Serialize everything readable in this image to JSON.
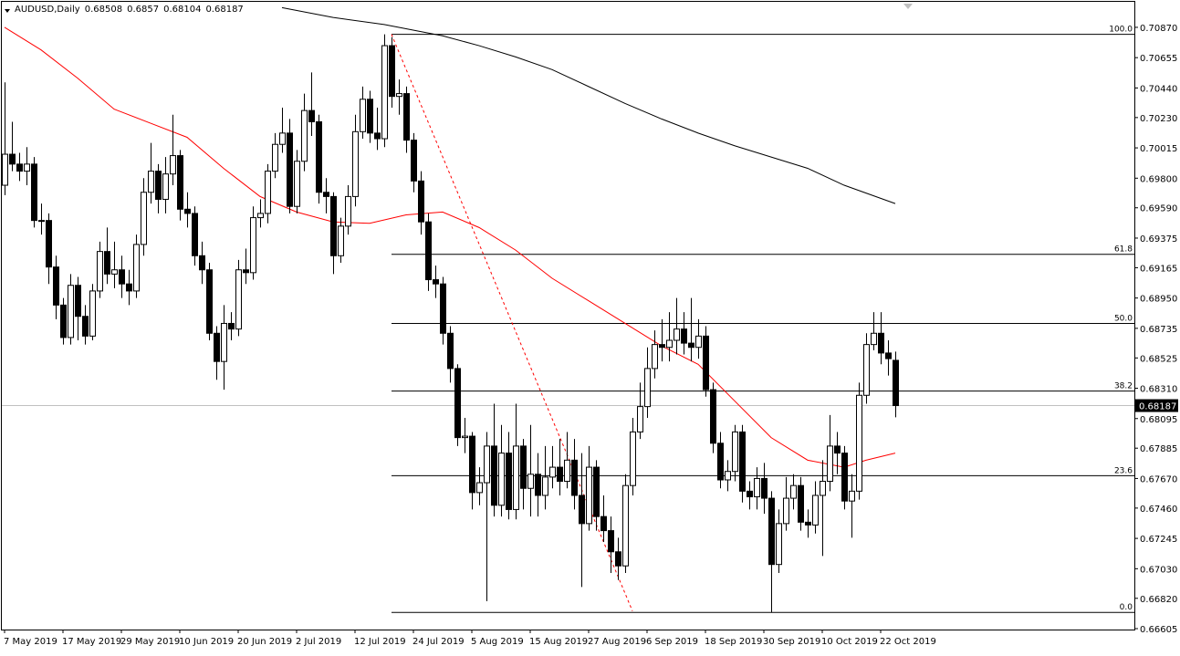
{
  "chart_data": {
    "type": "candlestick",
    "title": "AUDUSD,Daily",
    "categories": [
      "7 May 2019",
      null,
      null,
      null,
      null,
      null,
      null,
      null,
      "17 May 2019",
      null,
      null,
      null,
      null,
      null,
      null,
      null,
      "29 May 2019",
      null,
      null,
      null,
      null,
      null,
      null,
      null,
      "10 Jun 2019",
      null,
      null,
      null,
      null,
      null,
      null,
      null,
      "20 Jun 2019",
      null,
      null,
      null,
      null,
      null,
      null,
      null,
      "2 Jul 2019",
      null,
      null,
      null,
      null,
      null,
      null,
      null,
      "12 Jul 2019",
      null,
      null,
      null,
      null,
      null,
      null,
      null,
      "24 Jul 2019",
      null,
      null,
      null,
      null,
      null,
      null,
      null,
      "5 Aug 2019",
      null,
      null,
      null,
      null,
      null,
      null,
      null,
      "15 Aug 2019",
      null,
      null,
      null,
      null,
      null,
      null,
      null,
      "27 Aug 2019",
      null,
      null,
      null,
      null,
      null,
      null,
      null,
      "6 Sep 2019",
      null,
      null,
      null,
      null,
      null,
      null,
      null,
      "18 Sep 2019",
      null,
      null,
      null,
      null,
      null,
      null,
      null,
      "30 Sep 2019",
      null,
      null,
      null,
      null,
      null,
      null,
      null,
      "10 Oct 2019",
      null,
      null,
      null,
      null,
      null,
      null,
      null,
      "22 Oct 2019",
      null,
      null
    ],
    "series": [
      {
        "name": "AUDUSD",
        "open": [
          0.6975,
          0.6997,
          0.699,
          0.6985,
          0.699,
          0.695,
          0.695,
          0.6917,
          0.689,
          0.6867,
          0.6904,
          0.6882,
          0.6868,
          0.69,
          0.6928,
          0.6912,
          0.6915,
          0.6905,
          0.69,
          0.6933,
          0.697,
          0.6985,
          0.6965,
          0.6983,
          0.6996,
          0.6958,
          0.6955,
          0.6925,
          0.6915,
          0.687,
          0.685,
          0.6877,
          0.6873,
          0.6915,
          0.6913,
          0.6952,
          0.6955,
          0.6985,
          0.7004,
          0.7012,
          0.696,
          0.6992,
          0.7028,
          0.702,
          0.697,
          0.6967,
          0.6925,
          0.6946,
          0.6967,
          0.7013,
          0.7036,
          0.7012,
          0.7008,
          0.7074,
          0.7038,
          0.704,
          0.7007,
          0.6978,
          0.6949,
          0.6908,
          0.6905,
          0.687,
          0.6845,
          0.6796,
          0.6797,
          0.6757,
          0.6764,
          0.679,
          0.6748,
          0.6785,
          0.6745,
          0.679,
          0.676,
          0.677,
          0.6755,
          0.6768,
          0.6775,
          0.6765,
          0.678,
          0.6755,
          0.6735,
          0.6775,
          0.674,
          0.673,
          0.6715,
          0.6705,
          0.6762,
          0.68,
          0.6818,
          0.6845,
          0.6862,
          0.686,
          0.6865,
          0.6873,
          0.6863,
          0.686,
          0.6868,
          0.683,
          0.6792,
          0.6766,
          0.6772,
          0.68,
          0.6758,
          0.6754,
          0.6767,
          0.6753,
          0.6706,
          0.6735,
          0.6753,
          0.6762,
          0.6736,
          0.6734,
          0.6755,
          0.6765,
          0.679,
          0.6785,
          0.6751,
          0.6758,
          0.6826,
          0.6862,
          0.687,
          0.6856,
          0.68508
        ],
        "high": [
          0.7048,
          0.702,
          0.6998,
          0.7002,
          0.6995,
          0.6962,
          0.6955,
          0.6925,
          0.6895,
          0.6912,
          0.691,
          0.689,
          0.6905,
          0.6935,
          0.6945,
          0.6935,
          0.6925,
          0.6915,
          0.694,
          0.698,
          0.7005,
          0.699,
          0.6995,
          0.7025,
          0.7,
          0.697,
          0.696,
          0.6935,
          0.692,
          0.6875,
          0.689,
          0.6885,
          0.6922,
          0.693,
          0.696,
          0.6965,
          0.699,
          0.7012,
          0.703,
          0.7022,
          0.7,
          0.704,
          0.7055,
          0.7025,
          0.698,
          0.697,
          0.6952,
          0.6975,
          0.7025,
          0.7045,
          0.7042,
          0.703,
          0.7082,
          0.708,
          0.705,
          0.7045,
          0.7012,
          0.6985,
          0.6955,
          0.6918,
          0.691,
          0.6875,
          0.6848,
          0.681,
          0.68,
          0.6775,
          0.68,
          0.682,
          0.6805,
          0.68,
          0.682,
          0.6795,
          0.6805,
          0.6785,
          0.679,
          0.679,
          0.6795,
          0.68,
          0.6795,
          0.6785,
          0.679,
          0.678,
          0.6755,
          0.674,
          0.6725,
          0.677,
          0.681,
          0.6835,
          0.686,
          0.6872,
          0.688,
          0.6885,
          0.6895,
          0.6885,
          0.6895,
          0.688,
          0.6875,
          0.6835,
          0.68,
          0.678,
          0.6805,
          0.6805,
          0.6765,
          0.6775,
          0.6778,
          0.6758,
          0.6745,
          0.6768,
          0.677,
          0.6768,
          0.6745,
          0.6765,
          0.678,
          0.6812,
          0.68,
          0.679,
          0.677,
          0.6835,
          0.687,
          0.6885,
          0.6885,
          0.6865,
          0.6857
        ],
        "low": [
          0.6968,
          0.6985,
          0.6978,
          0.6975,
          0.6945,
          0.694,
          0.6905,
          0.688,
          0.6862,
          0.6862,
          0.6865,
          0.6862,
          0.6865,
          0.6895,
          0.6905,
          0.6902,
          0.6895,
          0.689,
          0.6895,
          0.6925,
          0.6962,
          0.6955,
          0.6955,
          0.6975,
          0.695,
          0.6945,
          0.6918,
          0.6905,
          0.6865,
          0.6837,
          0.683,
          0.6865,
          0.6868,
          0.6905,
          0.6908,
          0.6945,
          0.6948,
          0.698,
          0.6998,
          0.6955,
          0.6955,
          0.6985,
          0.701,
          0.6962,
          0.6955,
          0.6912,
          0.692,
          0.694,
          0.696,
          0.7008,
          0.7005,
          0.7,
          0.7002,
          0.703,
          0.7025,
          0.6998,
          0.697,
          0.694,
          0.69,
          0.6895,
          0.6862,
          0.6835,
          0.679,
          0.6785,
          0.6745,
          0.6748,
          0.668,
          0.674,
          0.674,
          0.6738,
          0.6738,
          0.6745,
          0.674,
          0.674,
          0.6745,
          0.676,
          0.6755,
          0.676,
          0.6745,
          0.669,
          0.673,
          0.673,
          0.6722,
          0.67,
          0.6695,
          0.67,
          0.6755,
          0.6795,
          0.681,
          0.6838,
          0.685,
          0.685,
          0.6855,
          0.6855,
          0.685,
          0.6852,
          0.6825,
          0.6785,
          0.676,
          0.6758,
          0.6765,
          0.675,
          0.6745,
          0.6745,
          0.6742,
          0.6672,
          0.67,
          0.673,
          0.6745,
          0.673,
          0.6725,
          0.6728,
          0.6712,
          0.6758,
          0.677,
          0.6745,
          0.6725,
          0.6752,
          0.682,
          0.6858,
          0.6848,
          0.684,
          0.68104
        ],
        "close": [
          0.6997,
          0.699,
          0.6985,
          0.699,
          0.695,
          0.695,
          0.6917,
          0.689,
          0.6867,
          0.6904,
          0.6882,
          0.6868,
          0.69,
          0.6928,
          0.6912,
          0.6915,
          0.6905,
          0.69,
          0.6933,
          0.697,
          0.6985,
          0.6965,
          0.6983,
          0.6996,
          0.6958,
          0.6955,
          0.6925,
          0.6915,
          0.687,
          0.685,
          0.6877,
          0.6873,
          0.6915,
          0.6913,
          0.6952,
          0.6955,
          0.6985,
          0.7004,
          0.7012,
          0.696,
          0.6992,
          0.7028,
          0.702,
          0.697,
          0.6967,
          0.6925,
          0.6946,
          0.6967,
          0.7013,
          0.7036,
          0.7012,
          0.7008,
          0.7074,
          0.7038,
          0.704,
          0.7007,
          0.6978,
          0.6949,
          0.6908,
          0.6905,
          0.687,
          0.6845,
          0.6796,
          0.6797,
          0.6757,
          0.6764,
          0.679,
          0.6748,
          0.6785,
          0.6745,
          0.679,
          0.676,
          0.677,
          0.6755,
          0.6768,
          0.6775,
          0.6765,
          0.678,
          0.6755,
          0.6735,
          0.6775,
          0.674,
          0.673,
          0.6715,
          0.6705,
          0.6762,
          0.68,
          0.6818,
          0.6845,
          0.6862,
          0.686,
          0.6865,
          0.6873,
          0.6863,
          0.686,
          0.6868,
          0.683,
          0.6792,
          0.6766,
          0.6772,
          0.68,
          0.6758,
          0.6754,
          0.6767,
          0.6753,
          0.6706,
          0.6735,
          0.6753,
          0.6762,
          0.6736,
          0.6734,
          0.6755,
          0.6765,
          0.679,
          0.6785,
          0.6751,
          0.6758,
          0.6826,
          0.6862,
          0.687,
          0.6856,
          0.6852,
          0.68187
        ],
        "up_color": "#ffffff",
        "down_color": "#000000"
      }
    ],
    "moving_averages": [
      {
        "color": "#ff0000",
        "x": [
          0,
          5,
          10,
          15,
          20,
          25,
          30,
          35,
          40,
          45,
          50,
          55,
          60,
          65,
          70,
          75,
          80,
          85,
          90,
          95,
          100,
          105,
          110,
          115,
          118,
          122
        ],
        "values": [
          0.7087,
          0.7071,
          0.7051,
          0.7029,
          0.7019,
          0.7009,
          0.6987,
          0.6967,
          0.6956,
          0.6949,
          0.6948,
          0.6954,
          0.6956,
          0.6945,
          0.6929,
          0.6909,
          0.6893,
          0.6877,
          0.6861,
          0.6848,
          0.6822,
          0.6796,
          0.678,
          0.6775,
          0.678,
          0.6785
        ]
      },
      {
        "color": "#000000",
        "x": [
          38,
          45,
          52,
          60,
          65,
          70,
          75,
          80,
          85,
          90,
          95,
          100,
          105,
          110,
          115,
          122
        ],
        "values": [
          0.7101,
          0.7094,
          0.7089,
          0.7081,
          0.7074,
          0.7066,
          0.7057,
          0.7045,
          0.7033,
          0.7022,
          0.7012,
          0.7003,
          0.6995,
          0.6987,
          0.6975,
          0.6962
        ]
      }
    ],
    "trendline": {
      "color": "#ff0000",
      "x": [
        53,
        86
      ],
      "values": [
        0.7082,
        0.6673
      ]
    },
    "fibonacci": [
      {
        "label": "100.0",
        "value": 0.7082
      },
      {
        "label": "61.8",
        "value": 0.6926
      },
      {
        "label": "50.0",
        "value": 0.6877
      },
      {
        "label": "38.2",
        "value": 0.6829
      },
      {
        "label": "23.6",
        "value": 0.6769
      },
      {
        "label": "0.0",
        "value": 0.6672
      }
    ],
    "ylim": [
      0.66605,
      0.71038
    ],
    "yticks": [
      {
        "value": 0.7087,
        "label": "0.70870"
      },
      {
        "value": 0.70655,
        "label": "0.70655"
      },
      {
        "value": 0.7044,
        "label": "0.70440"
      },
      {
        "value": 0.7023,
        "label": "0.70230"
      },
      {
        "value": 0.70015,
        "label": "0.70015"
      },
      {
        "value": 0.698,
        "label": "0.69800"
      },
      {
        "value": 0.6959,
        "label": "0.69590"
      },
      {
        "value": 0.69375,
        "label": "0.69375"
      },
      {
        "value": 0.69165,
        "label": "0.69165"
      },
      {
        "value": 0.6895,
        "label": "0.68950"
      },
      {
        "value": 0.68735,
        "label": "0.68735"
      },
      {
        "value": 0.68525,
        "label": "0.68525"
      },
      {
        "value": 0.6831,
        "label": "0.68310"
      },
      {
        "value": 0.68095,
        "label": "0.68095"
      },
      {
        "value": 0.67885,
        "label": "0.67885"
      },
      {
        "value": 0.6767,
        "label": "0.67670"
      },
      {
        "value": 0.6746,
        "label": "0.67460"
      },
      {
        "value": 0.67245,
        "label": "0.67245"
      },
      {
        "value": 0.6703,
        "label": "0.67030"
      },
      {
        "value": 0.6682,
        "label": "0.66820"
      },
      {
        "value": 0.66605,
        "label": "0.66605"
      }
    ]
  }
}
